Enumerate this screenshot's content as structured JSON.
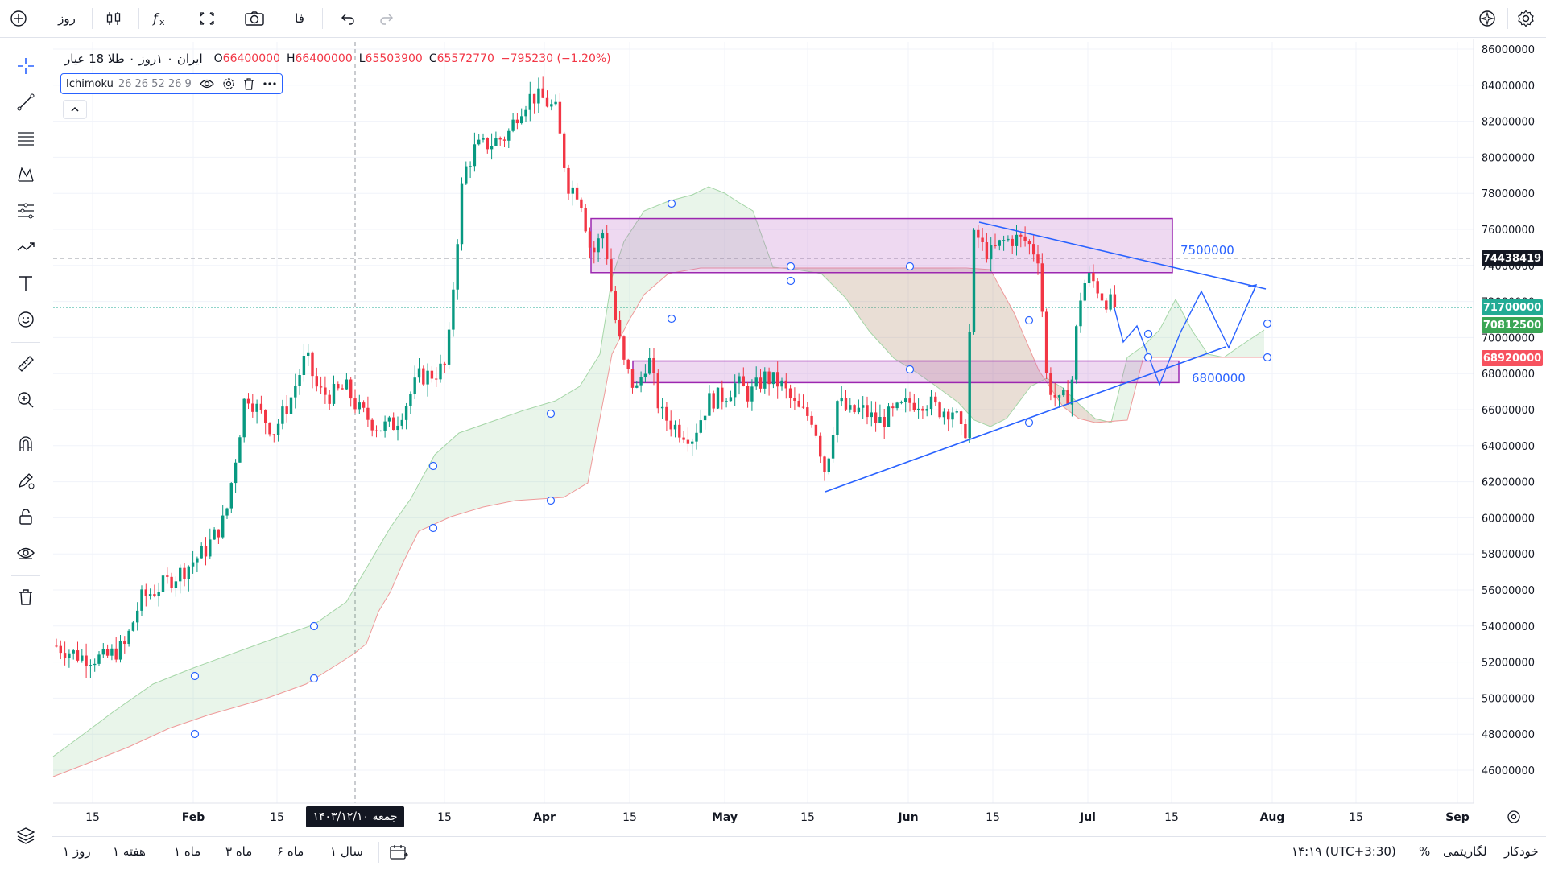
{
  "topbar": {
    "timeframe": "روز",
    "lang": "فا",
    "icons": [
      "plus-circle-icon",
      "candles-icon",
      "fx-icon",
      "fullscreen-icon",
      "camera-icon",
      "undo-icon",
      "redo-icon",
      "spark-icon",
      "settings-icon"
    ]
  },
  "legend": {
    "symbol": "ایران ۰ ۱روز ۰ طلا 18 عیار",
    "o_label": "O",
    "o": "66400000",
    "h_label": "H",
    "h": "66400000",
    "l_label": "L",
    "l": "65503900",
    "c_label": "C",
    "c": "65572770",
    "change": "−795230 (−1.20%)",
    "up_color": "#089981",
    "down_color": "#f23645"
  },
  "indicator": {
    "name": "Ichimoku",
    "params": "26 26 52 26 9"
  },
  "price_tags": [
    {
      "label": "74438419",
      "color": "#131722"
    },
    {
      "label": "71700000",
      "color": "#22ab94"
    },
    {
      "label": "70812500",
      "color": "#3aa655"
    },
    {
      "label": "68920000",
      "color": "#f7525f"
    }
  ],
  "annotations": {
    "upper": "7500000",
    "lower": "6800000"
  },
  "chart_data": {
    "type": "candlestick",
    "y_axis_labels": [
      "86000000",
      "84000000",
      "82000000",
      "80000000",
      "78000000",
      "76000000",
      "74000000",
      "72000000",
      "70000000",
      "68000000",
      "66000000",
      "64000000",
      "62000000",
      "60000000",
      "58000000",
      "56000000",
      "54000000",
      "52000000",
      "50000000",
      "48000000",
      "46000000"
    ],
    "x_axis_labels": [
      "15",
      "Feb",
      "15",
      "15",
      "Apr",
      "15",
      "May",
      "15",
      "Jun",
      "15",
      "Jul",
      "15",
      "Aug",
      "15",
      "Sep"
    ],
    "crosshair_date": "جمعه ۱۴۰۳/۱۲/۱۰",
    "ylim": [
      45000000,
      87000000
    ],
    "zones": [
      {
        "name": "resistance",
        "y_top": 76600000,
        "y_bottom": 73600000
      },
      {
        "name": "support",
        "y_top": 68700000,
        "y_bottom": 67500000
      }
    ]
  },
  "bottombar": {
    "ranges": [
      "۱ روز",
      "۱ هفته",
      "۱ ماه",
      "۳ ماه",
      "۶ ماه",
      "۱ سال"
    ],
    "time": "۱۴:۱۹ (UTC+3:30)",
    "percent": "%",
    "log": "لگاریتمی",
    "auto": "خودکار"
  }
}
